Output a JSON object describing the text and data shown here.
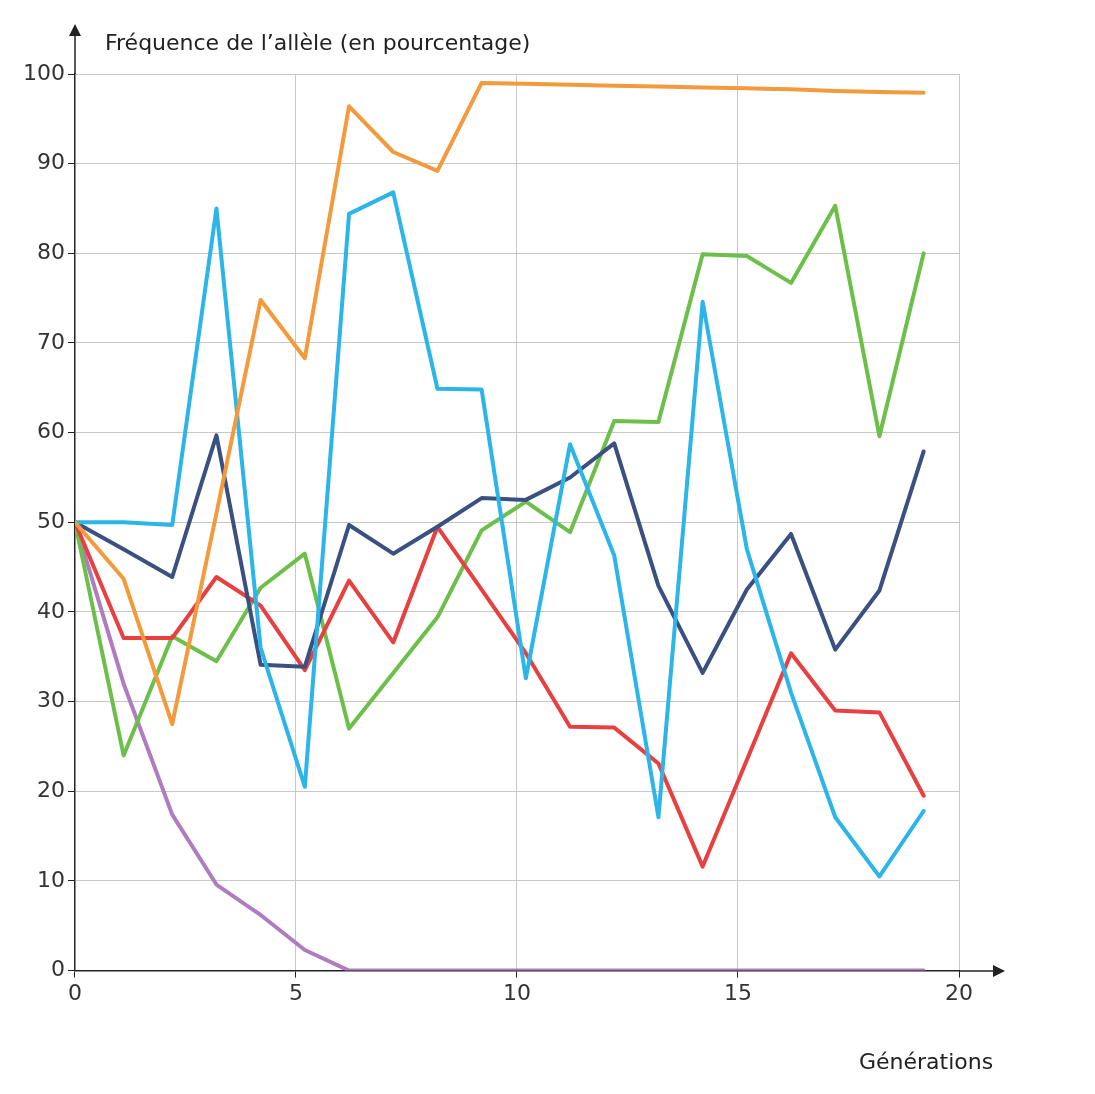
{
  "chart_data": {
    "type": "line",
    "ylabel": "Fréquence de l’allèle (en pourcentage)",
    "xlabel": "Générations",
    "x": [
      0,
      1.1,
      2.2,
      3.2,
      4.2,
      5.2,
      6.2,
      7.2,
      8.2,
      9.2,
      10.2,
      11.2,
      12.2,
      13.2,
      14.2,
      15.2,
      16.2,
      17.2,
      18.2,
      19.2
    ],
    "series": [
      {
        "color": "#f39a3c",
        "values": [
          50,
          43.7,
          27.5,
          51,
          74.8,
          68.3,
          96.4,
          91.3,
          89.2,
          99,
          98.9,
          98.8,
          98.7,
          98.6,
          98.5,
          98.4,
          98.3,
          98.1,
          98,
          97.9
        ]
      },
      {
        "color": "#2bb5e8",
        "values": [
          50,
          50,
          49.7,
          85,
          36,
          20.5,
          84.4,
          86.8,
          64.9,
          64.8,
          32.6,
          58.7,
          46.3,
          17.1,
          74.6,
          47,
          31,
          17.1,
          10.5,
          17.8
        ]
      },
      {
        "color": "#3a5080",
        "values": [
          50,
          47,
          43.9,
          59.7,
          34.1,
          33.9,
          49.7,
          46.5,
          49.5,
          52.7,
          52.5,
          55,
          58.8,
          42.9,
          33.2,
          42.5,
          48.7,
          35.8,
          42.4,
          57.9
        ]
      },
      {
        "color": "#e84040",
        "values": [
          50,
          37.1,
          37.1,
          43.9,
          40.7,
          33.5,
          43.5,
          36.6,
          49.5,
          42.5,
          35.4,
          27.2,
          27.1,
          23.1,
          11.6,
          23.5,
          35.4,
          29,
          28.8,
          19.5
        ]
      },
      {
        "color": "#6cc04a",
        "values": [
          50,
          24,
          37.3,
          34.5,
          42.7,
          46.5,
          27,
          33.2,
          39.4,
          49.1,
          52.3,
          48.9,
          61.3,
          61.2,
          79.9,
          79.7,
          76.7,
          85.3,
          59.6,
          80
        ]
      },
      {
        "color": "#b07cc0",
        "values": [
          50,
          32,
          17.4,
          9.6,
          6.2,
          2.3,
          0,
          0,
          0,
          0,
          0,
          0,
          0,
          0,
          0,
          0,
          0,
          0,
          0,
          0
        ]
      }
    ],
    "xlim": [
      0,
      20
    ],
    "xticks": [
      0,
      5,
      10,
      15,
      20
    ],
    "ylim": [
      0,
      100
    ],
    "yticks": [
      0,
      10,
      20,
      30,
      40,
      50,
      60,
      70,
      80,
      90,
      100
    ],
    "grid": true,
    "legend": false,
    "marker": "none",
    "line_style": "solid"
  }
}
